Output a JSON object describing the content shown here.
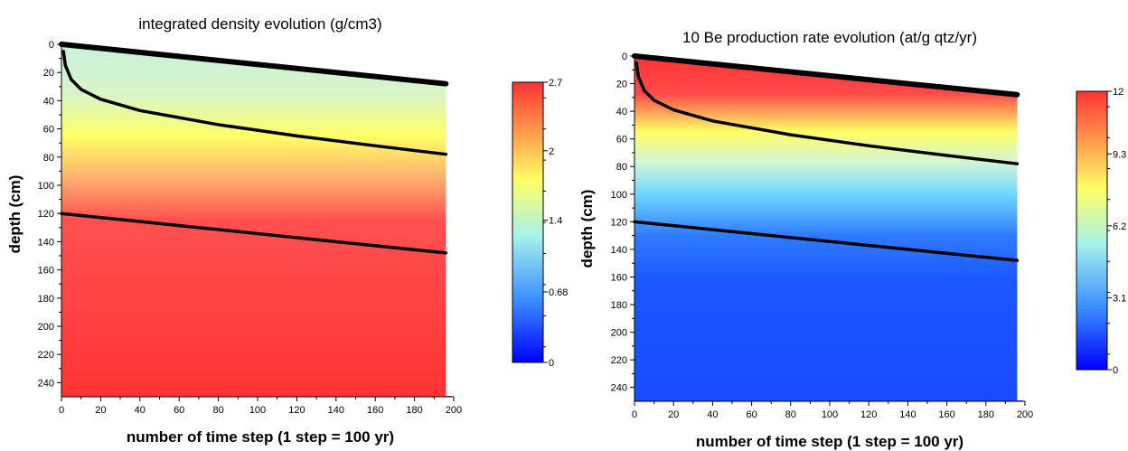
{
  "chart_data": [
    {
      "type": "heatmap",
      "title": "integrated density evolution (g/cm3)",
      "xlabel": "number of time step (1 step = 100 yr)",
      "ylabel": "depth (cm)",
      "xlim": [
        0,
        200
      ],
      "ylim": [
        0,
        250
      ],
      "y_inverted": true,
      "x_ticks": [
        0,
        20,
        40,
        60,
        80,
        100,
        120,
        140,
        160,
        180,
        200
      ],
      "y_ticks": [
        0,
        20,
        40,
        60,
        80,
        100,
        120,
        140,
        160,
        180,
        200,
        220,
        240
      ],
      "colorbar": {
        "min": 0,
        "max": 2.7,
        "ticks": [
          "2.7",
          "2",
          "1.4",
          "0.68",
          "0"
        ],
        "tick_values": [
          2.7,
          2.04,
          1.37,
          0.68,
          0
        ]
      },
      "plot_extent_x": 196,
      "lines": [
        {
          "x": [
            0,
            196
          ],
          "y": [
            0,
            28
          ]
        },
        {
          "x": [
            1,
            2,
            5,
            10,
            20,
            40,
            80,
            120,
            160,
            196
          ],
          "y": [
            5,
            15,
            25,
            32,
            39,
            47,
            57,
            65,
            72,
            78
          ]
        },
        {
          "x": [
            0,
            196
          ],
          "y": [
            120,
            148
          ]
        }
      ]
    },
    {
      "type": "heatmap",
      "title": "10 Be production rate evolution (at/g qtz/yr)",
      "xlabel": "number of time step (1 step = 100 yr)",
      "ylabel": "depth (cm)",
      "xlim": [
        0,
        200
      ],
      "ylim": [
        0,
        250
      ],
      "y_inverted": true,
      "x_ticks": [
        0,
        20,
        40,
        60,
        80,
        100,
        120,
        140,
        160,
        180,
        200
      ],
      "y_ticks": [
        0,
        20,
        40,
        60,
        80,
        100,
        120,
        140,
        160,
        180,
        200,
        220,
        240
      ],
      "colorbar": {
        "min": 0,
        "max": 12,
        "ticks": [
          "12",
          "9.3",
          "6.2",
          "3.1",
          "0"
        ],
        "tick_values": [
          12,
          9.3,
          6.2,
          3.1,
          0
        ]
      },
      "plot_extent_x": 196,
      "lines": [
        {
          "x": [
            0,
            196
          ],
          "y": [
            0,
            28
          ]
        },
        {
          "x": [
            1,
            2,
            5,
            10,
            20,
            40,
            80,
            120,
            160,
            196
          ],
          "y": [
            5,
            15,
            25,
            32,
            39,
            47,
            57,
            65,
            72,
            78
          ]
        },
        {
          "x": [
            0,
            196
          ],
          "y": [
            120,
            148
          ]
        }
      ]
    }
  ],
  "colors": {
    "colormap": [
      "#0000ff",
      "#3a8cff",
      "#a6f2ec",
      "#ffff66",
      "#ff3333"
    ],
    "line": "#000000"
  }
}
